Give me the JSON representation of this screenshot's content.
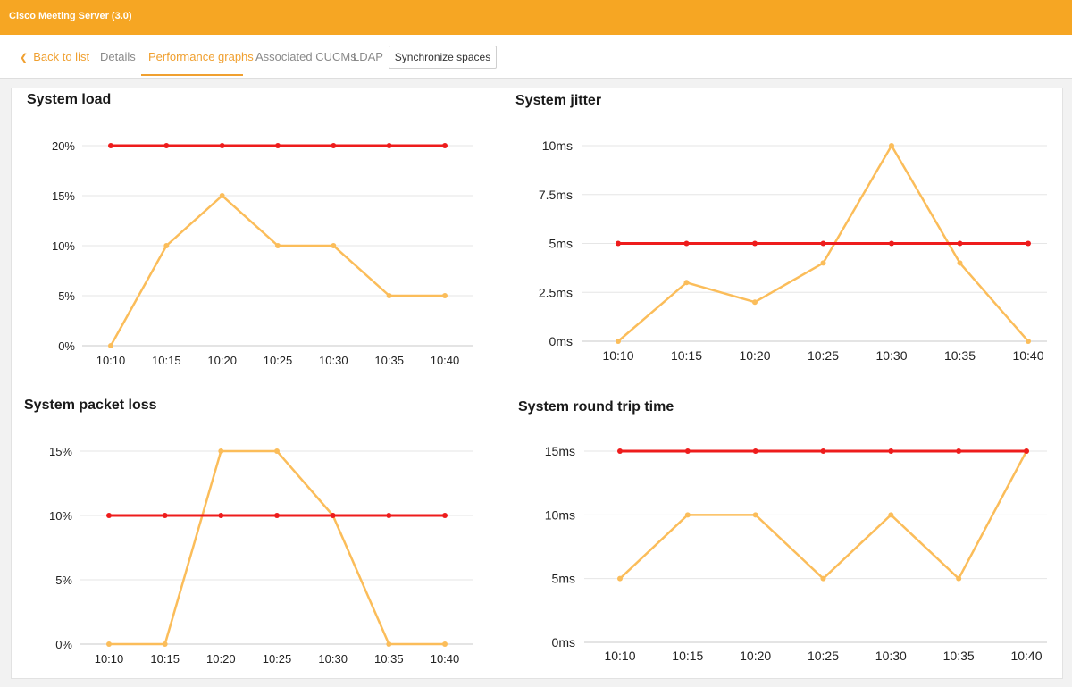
{
  "app": {
    "title": "Cisco Meeting Server (3.0)"
  },
  "tabs": {
    "back": "Back to list",
    "details": "Details",
    "performance": "Performance graphs",
    "cucms": "Associated CUCMs",
    "ldap": "LDAP",
    "sync": "Synchronize spaces"
  },
  "colors": {
    "accent": "#f6a623",
    "threshold": "#ee1c1c",
    "series": "#fbbd5a"
  },
  "chart_data": [
    {
      "type": "line",
      "title": "System load",
      "categories": [
        "10:10",
        "10:15",
        "10:20",
        "10:25",
        "10:30",
        "10:35",
        "10:40"
      ],
      "ytick_labels": [
        "0%",
        "5%",
        "10%",
        "15%",
        "20%"
      ],
      "ylim": [
        0,
        20
      ],
      "series": [
        {
          "values": [
            0,
            10,
            15,
            10,
            10,
            5,
            5
          ]
        },
        {
          "values": [
            20,
            20,
            20,
            20,
            20,
            20,
            20
          ]
        }
      ]
    },
    {
      "type": "line",
      "title": "System jitter",
      "categories": [
        "10:10",
        "10:15",
        "10:20",
        "10:25",
        "10:30",
        "10:35",
        "10:40"
      ],
      "ytick_labels": [
        "0ms",
        "2.5ms",
        "5ms",
        "7.5ms",
        "10ms"
      ],
      "ylim": [
        0,
        10
      ],
      "series": [
        {
          "values": [
            0,
            3,
            2,
            4,
            10,
            4,
            0
          ]
        },
        {
          "values": [
            5,
            5,
            5,
            5,
            5,
            5,
            5
          ]
        }
      ]
    },
    {
      "type": "line",
      "title": "System packet loss",
      "categories": [
        "10:10",
        "10:15",
        "10:20",
        "10:25",
        "10:30",
        "10:35",
        "10:40"
      ],
      "ytick_labels": [
        "0%",
        "5%",
        "10%",
        "15%"
      ],
      "ylim": [
        0,
        15
      ],
      "series": [
        {
          "values": [
            0,
            0,
            15,
            15,
            10,
            0,
            0
          ]
        },
        {
          "values": [
            10,
            10,
            10,
            10,
            10,
            10,
            10
          ]
        }
      ]
    },
    {
      "type": "line",
      "title": "System round trip time",
      "categories": [
        "10:10",
        "10:15",
        "10:20",
        "10:25",
        "10:30",
        "10:35",
        "10:40"
      ],
      "ytick_labels": [
        "0ms",
        "5ms",
        "10ms",
        "15ms"
      ],
      "ylim": [
        0,
        15
      ],
      "series": [
        {
          "values": [
            5,
            10,
            10,
            5,
            10,
            5,
            15
          ]
        },
        {
          "values": [
            15,
            15,
            15,
            15,
            15,
            15,
            15
          ]
        }
      ]
    }
  ]
}
